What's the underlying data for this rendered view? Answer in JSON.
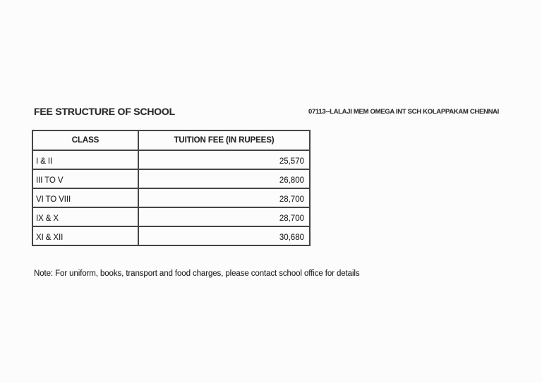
{
  "document": {
    "title": "FEE STRUCTURE OF SCHOOL",
    "header_right": "07113--LALAJI MEM OMEGA INT SCH KOLAPPAKAM CHENNAI",
    "note": "Note: For uniform, books, transport and food charges, please contact school office for details"
  },
  "fee_table": {
    "columns": [
      "CLASS",
      "TUITION FEE (IN RUPEES)"
    ],
    "rows": [
      {
        "class": "I & II",
        "fee": "25,570"
      },
      {
        "class": "III TO V",
        "fee": "26,800"
      },
      {
        "class": "VI TO VIII",
        "fee": "28,700"
      },
      {
        "class": "IX & X",
        "fee": "28,700"
      },
      {
        "class": "XI & XII",
        "fee": "30,680"
      }
    ]
  },
  "colors": {
    "background": "#fcfcfc",
    "text": "#262626",
    "border": "#454545"
  }
}
